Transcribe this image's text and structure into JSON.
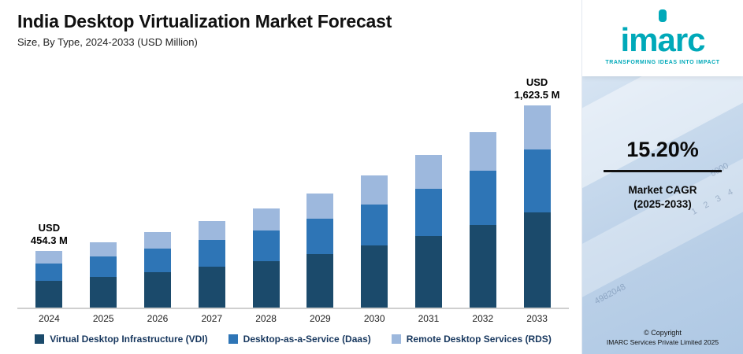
{
  "header": {
    "title": "India Desktop Virtualization Market Forecast",
    "subtitle": "Size, By Type, 2024-2033 (USD Million)"
  },
  "chart_data": {
    "type": "bar",
    "stacked": true,
    "title": "India Desktop Virtualization Market Forecast",
    "subtitle": "Size, By Type, 2024-2033 (USD Million)",
    "xlabel": "",
    "ylabel": "USD Million",
    "ylim": [
      0,
      1700
    ],
    "grid": false,
    "legend_position": "bottom",
    "categories": [
      "2024",
      "2025",
      "2026",
      "2027",
      "2028",
      "2029",
      "2030",
      "2031",
      "2032",
      "2033"
    ],
    "series": [
      {
        "name": "Virtual Desktop Infrastructure (VDI)",
        "color": "#1b4a6b",
        "values": [
          213.5,
          246.0,
          283.4,
          326.5,
          376.0,
          433.2,
          499.1,
          575.0,
          662.3,
          763.0
        ]
      },
      {
        "name": "Desktop-as-a-Service (Daas)",
        "color": "#2e75b6",
        "values": [
          140.8,
          162.3,
          186.9,
          215.3,
          248.0,
          285.8,
          329.2,
          379.2,
          436.9,
          503.3
        ]
      },
      {
        "name": "Remote Desktop Services (RDS)",
        "color": "#9db8dd",
        "values": [
          100.0,
          115.1,
          132.6,
          152.8,
          176.1,
          202.8,
          233.6,
          269.1,
          310.0,
          357.2
        ]
      }
    ],
    "totals": [
      454.3,
      523.4,
      602.9,
      694.6,
      800.1,
      921.8,
      1061.9,
      1223.3,
      1409.2,
      1623.5
    ],
    "annotations": [
      {
        "category": "2024",
        "line1": "USD",
        "line2": "454.3 M"
      },
      {
        "category": "2033",
        "line1": "USD",
        "line2": "1,623.5 M"
      }
    ]
  },
  "sidebar": {
    "logo_text": "imarc",
    "tagline": "TRANSFORMING IDEAS INTO IMPACT",
    "cagr_value": "15.20%",
    "cagr_label_line1": "Market CAGR",
    "cagr_label_line2": "(2025-2033)",
    "copyright_line1": "© Copyright",
    "copyright_line2": "IMARC Services Private Limited 2025",
    "decor": {
      "n1": "5000",
      "n2": "1 2 3 4",
      "n3": "4982048"
    }
  }
}
